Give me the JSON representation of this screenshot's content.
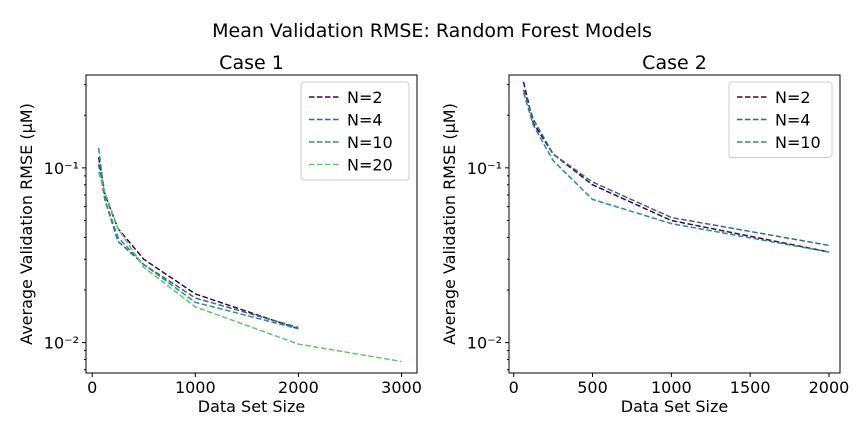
{
  "suptitle": "Mean Validation RMSE: Random Forest Models",
  "chart_data": [
    {
      "type": "line",
      "title": "Case 1",
      "xlabel": "Data Set Size",
      "ylabel": "Average Validation RMSE (μM)",
      "yscale": "log",
      "xlim": [
        -60,
        3150
      ],
      "ylim": [
        0.0067,
        0.34
      ],
      "xticks": [
        0,
        1000,
        2000,
        3000
      ],
      "xtick_labels": [
        "0",
        "1000",
        "2000",
        "3000"
      ],
      "yticks": [
        0.01,
        0.1
      ],
      "ytick_labels": [
        "10⁻²",
        "10⁻¹"
      ],
      "grid": false,
      "legend": "upper right",
      "series": [
        {
          "name": "N=2",
          "color": "#440154",
          "x": [
            62,
            125,
            250,
            500,
            1000,
            2000
          ],
          "y": [
            0.115,
            0.07,
            0.045,
            0.03,
            0.019,
            0.012
          ]
        },
        {
          "name": "N=4",
          "color": "#31688e",
          "x": [
            62,
            125,
            250,
            500,
            1000,
            2000
          ],
          "y": [
            0.105,
            0.065,
            0.038,
            0.028,
            0.018,
            0.0122
          ]
        },
        {
          "name": "N=10",
          "color": "#21918c",
          "x": [
            62,
            125,
            250,
            500,
            1000,
            2000
          ],
          "y": [
            0.13,
            0.065,
            0.04,
            0.028,
            0.017,
            0.012
          ]
        },
        {
          "name": "N=20",
          "color": "#5ec962",
          "x": [
            62,
            125,
            250,
            500,
            1000,
            2000,
            3000
          ],
          "y": [
            0.095,
            0.072,
            0.045,
            0.027,
            0.016,
            0.0098,
            0.0078
          ]
        }
      ]
    },
    {
      "type": "line",
      "title": "Case 2",
      "xlabel": "Data Set Size",
      "ylabel": "Average Validation RMSE (μM)",
      "yscale": "log",
      "xlim": [
        -30,
        2070
      ],
      "ylim": [
        0.0067,
        0.34
      ],
      "xticks": [
        0,
        500,
        1000,
        1500,
        2000
      ],
      "xtick_labels": [
        "0",
        "500",
        "1000",
        "1500",
        "2000"
      ],
      "yticks": [
        0.01,
        0.1
      ],
      "ytick_labels": [
        "10⁻²",
        "10⁻¹"
      ],
      "grid": false,
      "legend": "upper right",
      "series": [
        {
          "name": "N=2",
          "color": "#440154",
          "x": [
            62,
            125,
            250,
            500,
            1000,
            2000
          ],
          "y": [
            0.31,
            0.18,
            0.12,
            0.08,
            0.05,
            0.033
          ]
        },
        {
          "name": "N=4",
          "color": "#31688e",
          "x": [
            62,
            125,
            250,
            500,
            1000,
            2000
          ],
          "y": [
            0.28,
            0.19,
            0.12,
            0.083,
            0.052,
            0.036
          ]
        },
        {
          "name": "N=10",
          "color": "#21918c",
          "x": [
            62,
            125,
            250,
            500,
            1000,
            2000
          ],
          "y": [
            0.27,
            0.175,
            0.11,
            0.066,
            0.048,
            0.033
          ]
        }
      ]
    }
  ]
}
